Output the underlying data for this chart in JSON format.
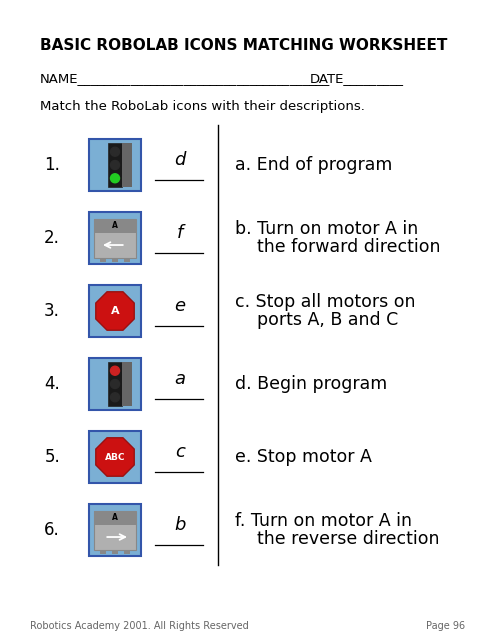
{
  "title": "BASIC ROBOLAB ICONS MATCHING WORKSHEET",
  "name_label": "NAME",
  "name_underscores": "______________________________________",
  "date_label": "DATE",
  "date_underscores": "_________",
  "instruction": "Match the RoboLab icons with their descriptions.",
  "left_items": [
    {
      "num": "1.",
      "answer": "d"
    },
    {
      "num": "2.",
      "answer": "f"
    },
    {
      "num": "3.",
      "answer": "e"
    },
    {
      "num": "4.",
      "answer": "a"
    },
    {
      "num": "5.",
      "answer": "c"
    },
    {
      "num": "6.",
      "answer": "b"
    }
  ],
  "right_items": [
    {
      "label": "a.",
      "line1": "End of program",
      "line2": ""
    },
    {
      "label": "b.",
      "line1": "Turn on motor A in",
      "line2": "   the forward direction"
    },
    {
      "label": "c.",
      "line1": "Stop all motors on",
      "line2": "   ports A, B and C"
    },
    {
      "label": "d.",
      "line1": "Begin program",
      "line2": ""
    },
    {
      "label": "e.",
      "line1": "Stop motor A",
      "line2": ""
    },
    {
      "label": "f.",
      "line1": "Turn on motor A in",
      "line2": "   the reverse direction"
    }
  ],
  "footer_left": "Robotics Academy 2001. All Rights Reserved",
  "footer_right": "Page 96",
  "bg_color": "#ffffff",
  "icon_bg": "#7bafd4",
  "icon_border": "#3355aa"
}
